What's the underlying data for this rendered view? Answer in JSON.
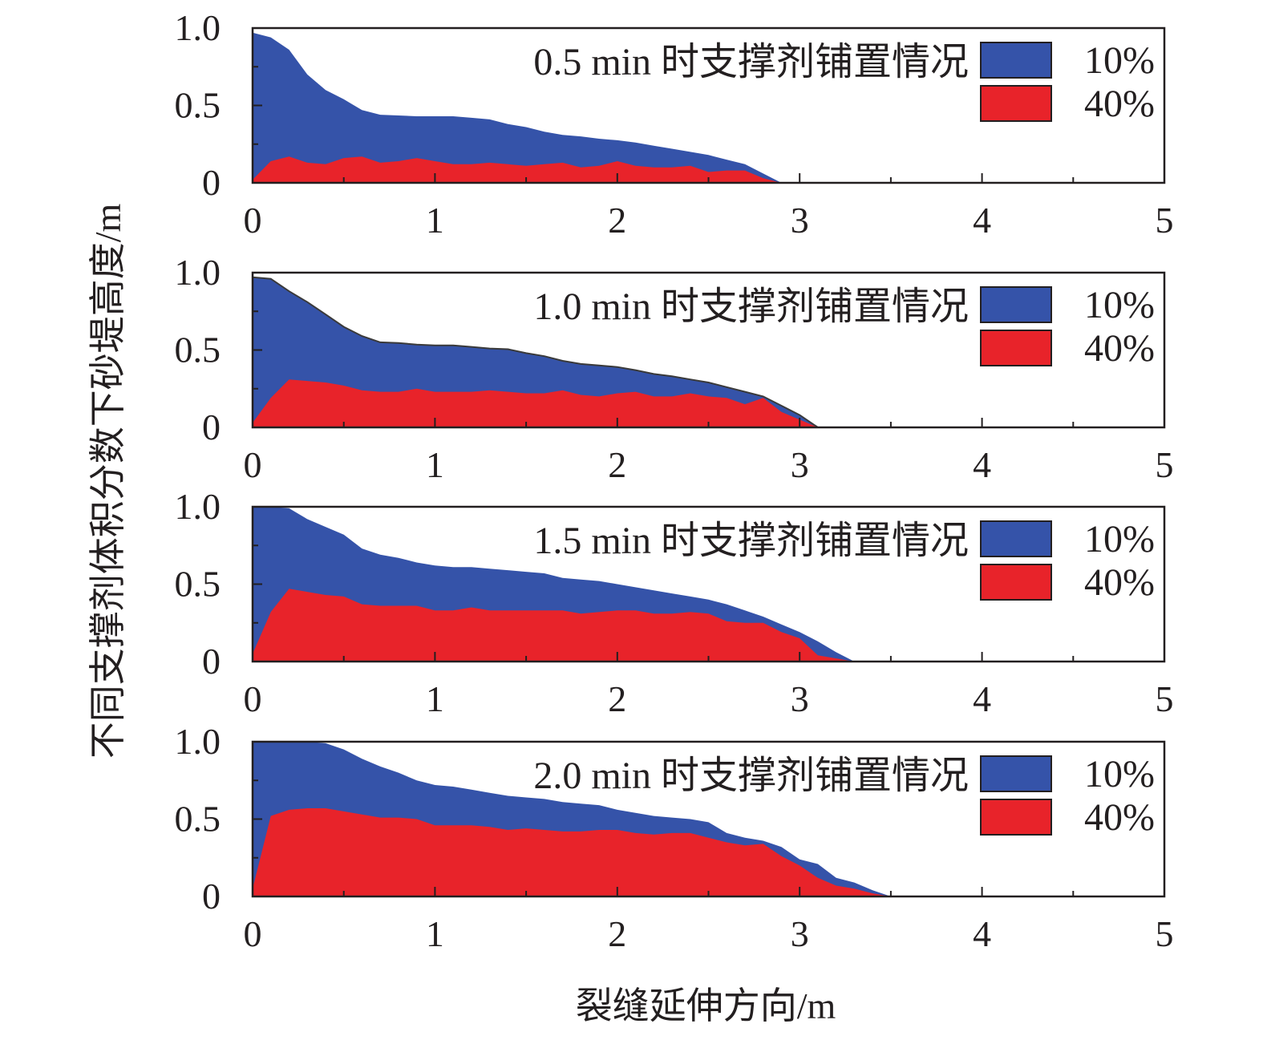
{
  "figure": {
    "ylabel": "不同支撑剂体积分数下砂堤高度/m",
    "xlabel": "裂缝延伸方向/m"
  },
  "colors": {
    "series_10": "#3553a9",
    "series_40": "#e8232a",
    "axis": "#231f20"
  },
  "chart_data": [
    {
      "type": "area",
      "title": "0.5 min 时支撑剂铺置情况",
      "xlim": [
        0,
        5
      ],
      "ylim": [
        0,
        1.0
      ],
      "xticks": [
        "0",
        "1",
        "2",
        "3",
        "4",
        "5"
      ],
      "yticks": [
        "0",
        "0.5",
        "1.0"
      ],
      "legend_position": "top-right",
      "series": [
        {
          "name": "10%",
          "x": [
            0,
            0.1,
            0.2,
            0.3,
            0.4,
            0.5,
            0.6,
            0.7,
            0.8,
            0.9,
            1.0,
            1.1,
            1.2,
            1.3,
            1.4,
            1.5,
            1.6,
            1.7,
            1.8,
            1.9,
            2.0,
            2.1,
            2.2,
            2.3,
            2.4,
            2.5,
            2.6,
            2.7,
            2.8,
            2.9
          ],
          "y": [
            0.97,
            0.94,
            0.86,
            0.7,
            0.6,
            0.54,
            0.47,
            0.44,
            0.435,
            0.43,
            0.43,
            0.43,
            0.42,
            0.41,
            0.38,
            0.36,
            0.33,
            0.31,
            0.3,
            0.285,
            0.275,
            0.26,
            0.24,
            0.22,
            0.2,
            0.18,
            0.15,
            0.12,
            0.06,
            0.0
          ]
        },
        {
          "name": "40%",
          "x": [
            0,
            0.1,
            0.2,
            0.3,
            0.4,
            0.5,
            0.6,
            0.7,
            0.8,
            0.9,
            1.0,
            1.1,
            1.2,
            1.3,
            1.4,
            1.5,
            1.6,
            1.7,
            1.8,
            1.9,
            2.0,
            2.1,
            2.2,
            2.3,
            2.4,
            2.5,
            2.6,
            2.7,
            2.8,
            2.9
          ],
          "y": [
            0.02,
            0.14,
            0.17,
            0.13,
            0.12,
            0.16,
            0.17,
            0.13,
            0.14,
            0.16,
            0.14,
            0.12,
            0.12,
            0.13,
            0.12,
            0.11,
            0.12,
            0.13,
            0.1,
            0.11,
            0.14,
            0.11,
            0.1,
            0.1,
            0.11,
            0.07,
            0.08,
            0.08,
            0.03,
            0.0
          ]
        }
      ]
    },
    {
      "type": "area",
      "title": "1.0 min 时支撑剂铺置情况",
      "xlim": [
        0,
        5
      ],
      "ylim": [
        0,
        1.0
      ],
      "xticks": [
        "0",
        "1",
        "2",
        "3",
        "4",
        "5"
      ],
      "yticks": [
        "0",
        "0.5",
        "1.0"
      ],
      "legend_position": "top-right",
      "series": [
        {
          "name": "10%",
          "x": [
            0,
            0.1,
            0.2,
            0.3,
            0.4,
            0.5,
            0.6,
            0.7,
            0.8,
            0.9,
            1.0,
            1.1,
            1.2,
            1.3,
            1.4,
            1.5,
            1.6,
            1.7,
            1.8,
            1.9,
            2.0,
            2.1,
            2.2,
            2.3,
            2.4,
            2.5,
            2.6,
            2.7,
            2.8,
            2.9,
            3.0,
            3.1
          ],
          "y": [
            0.97,
            0.96,
            0.88,
            0.81,
            0.73,
            0.65,
            0.59,
            0.55,
            0.545,
            0.535,
            0.53,
            0.53,
            0.52,
            0.51,
            0.505,
            0.48,
            0.46,
            0.43,
            0.41,
            0.4,
            0.39,
            0.37,
            0.345,
            0.33,
            0.31,
            0.29,
            0.26,
            0.23,
            0.2,
            0.14,
            0.08,
            0.0
          ]
        },
        {
          "name": "40%",
          "x": [
            0,
            0.1,
            0.2,
            0.3,
            0.4,
            0.5,
            0.6,
            0.7,
            0.8,
            0.9,
            1.0,
            1.1,
            1.2,
            1.3,
            1.4,
            1.5,
            1.6,
            1.7,
            1.8,
            1.9,
            2.0,
            2.1,
            2.2,
            2.3,
            2.4,
            2.5,
            2.6,
            2.7,
            2.8,
            2.9,
            3.0,
            3.1
          ],
          "y": [
            0.03,
            0.19,
            0.31,
            0.3,
            0.29,
            0.27,
            0.24,
            0.23,
            0.23,
            0.25,
            0.23,
            0.23,
            0.23,
            0.24,
            0.23,
            0.22,
            0.22,
            0.24,
            0.21,
            0.2,
            0.22,
            0.23,
            0.2,
            0.2,
            0.22,
            0.2,
            0.19,
            0.15,
            0.19,
            0.1,
            0.05,
            0.0
          ]
        }
      ]
    },
    {
      "type": "area",
      "title": "1.5 min 时支撑剂铺置情况",
      "xlim": [
        0,
        5
      ],
      "ylim": [
        0,
        1.0
      ],
      "xticks": [
        "0",
        "1",
        "2",
        "3",
        "4",
        "5"
      ],
      "yticks": [
        "0",
        "0.5",
        "1.0"
      ],
      "legend_position": "top-right",
      "series": [
        {
          "name": "10%",
          "x": [
            0,
            0.1,
            0.2,
            0.3,
            0.4,
            0.5,
            0.6,
            0.7,
            0.8,
            0.9,
            1.0,
            1.1,
            1.2,
            1.3,
            1.4,
            1.5,
            1.6,
            1.7,
            1.8,
            1.9,
            2.0,
            2.1,
            2.2,
            2.3,
            2.4,
            2.5,
            2.6,
            2.7,
            2.8,
            2.9,
            3.0,
            3.1,
            3.2,
            3.3
          ],
          "y": [
            1.0,
            1.0,
            0.99,
            0.92,
            0.87,
            0.82,
            0.73,
            0.69,
            0.67,
            0.64,
            0.62,
            0.61,
            0.61,
            0.6,
            0.59,
            0.58,
            0.57,
            0.54,
            0.53,
            0.52,
            0.5,
            0.48,
            0.46,
            0.44,
            0.42,
            0.4,
            0.37,
            0.33,
            0.29,
            0.24,
            0.19,
            0.13,
            0.06,
            0.0
          ]
        },
        {
          "name": "40%",
          "x": [
            0,
            0.1,
            0.2,
            0.3,
            0.4,
            0.5,
            0.6,
            0.7,
            0.8,
            0.9,
            1.0,
            1.1,
            1.2,
            1.3,
            1.4,
            1.5,
            1.6,
            1.7,
            1.8,
            1.9,
            2.0,
            2.1,
            2.2,
            2.3,
            2.4,
            2.5,
            2.6,
            2.7,
            2.8,
            2.9,
            3.0,
            3.1,
            3.2,
            3.3
          ],
          "y": [
            0.05,
            0.32,
            0.47,
            0.45,
            0.43,
            0.42,
            0.37,
            0.36,
            0.36,
            0.36,
            0.33,
            0.33,
            0.35,
            0.33,
            0.33,
            0.33,
            0.33,
            0.33,
            0.31,
            0.32,
            0.33,
            0.33,
            0.31,
            0.31,
            0.32,
            0.31,
            0.26,
            0.25,
            0.25,
            0.19,
            0.15,
            0.04,
            0.02,
            0.0
          ]
        }
      ]
    },
    {
      "type": "area",
      "title": "2.0 min 时支撑剂铺置情况",
      "xlim": [
        0,
        5
      ],
      "ylim": [
        0,
        1.0
      ],
      "xticks": [
        "0",
        "1",
        "2",
        "3",
        "4",
        "5"
      ],
      "yticks": [
        "0",
        "0.5",
        "1.0"
      ],
      "legend_position": "top-right",
      "series": [
        {
          "name": "10%",
          "x": [
            0,
            0.1,
            0.2,
            0.3,
            0.4,
            0.5,
            0.6,
            0.7,
            0.8,
            0.9,
            1.0,
            1.1,
            1.2,
            1.3,
            1.4,
            1.5,
            1.6,
            1.7,
            1.8,
            1.9,
            2.0,
            2.1,
            2.2,
            2.3,
            2.4,
            2.5,
            2.6,
            2.7,
            2.8,
            2.9,
            3.0,
            3.1,
            3.2,
            3.3,
            3.4,
            3.5
          ],
          "y": [
            1.0,
            1.0,
            1.0,
            1.0,
            0.99,
            0.95,
            0.89,
            0.84,
            0.8,
            0.75,
            0.72,
            0.71,
            0.69,
            0.67,
            0.65,
            0.64,
            0.63,
            0.61,
            0.6,
            0.59,
            0.56,
            0.54,
            0.52,
            0.51,
            0.5,
            0.48,
            0.41,
            0.38,
            0.36,
            0.32,
            0.24,
            0.21,
            0.12,
            0.09,
            0.04,
            0.0
          ]
        },
        {
          "name": "40%",
          "x": [
            0,
            0.1,
            0.2,
            0.3,
            0.4,
            0.5,
            0.6,
            0.7,
            0.8,
            0.9,
            1.0,
            1.1,
            1.2,
            1.3,
            1.4,
            1.5,
            1.6,
            1.7,
            1.8,
            1.9,
            2.0,
            2.1,
            2.2,
            2.3,
            2.4,
            2.5,
            2.6,
            2.7,
            2.8,
            2.9,
            3.0,
            3.1,
            3.2,
            3.3,
            3.4,
            3.5
          ],
          "y": [
            0.05,
            0.52,
            0.56,
            0.57,
            0.57,
            0.55,
            0.53,
            0.51,
            0.51,
            0.5,
            0.46,
            0.46,
            0.46,
            0.45,
            0.43,
            0.44,
            0.43,
            0.42,
            0.42,
            0.43,
            0.43,
            0.41,
            0.4,
            0.41,
            0.41,
            0.38,
            0.35,
            0.33,
            0.34,
            0.26,
            0.2,
            0.12,
            0.07,
            0.05,
            0.02,
            0.0
          ]
        }
      ]
    }
  ]
}
